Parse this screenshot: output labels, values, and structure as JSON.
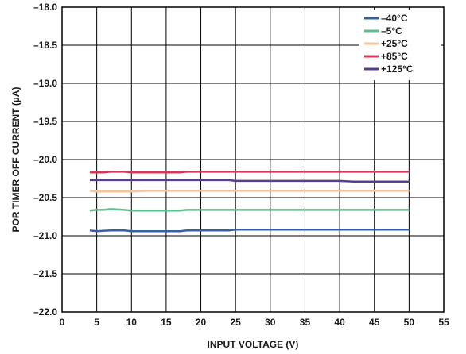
{
  "chart_data": {
    "type": "line",
    "title": "",
    "xlabel": "INPUT VOLTAGE (V)",
    "ylabel": "POR TIMER OFF CURRENT (µA)",
    "xlim": [
      0,
      55
    ],
    "ylim": [
      -22.0,
      -18.0
    ],
    "x_ticks": [
      "0",
      "5",
      "10",
      "15",
      "20",
      "25",
      "30",
      "35",
      "40",
      "45",
      "50",
      "55"
    ],
    "y_ticks": [
      "–18.0",
      "–18.5",
      "–19.0",
      "–19.5",
      "–20.0",
      "–20.5",
      "–21.0",
      "–21.5",
      "–22.0"
    ],
    "grid": true,
    "legend_position": "top-right",
    "series": [
      {
        "name": "–40°C",
        "color": "#3a5fa0",
        "points": [
          [
            4,
            -20.93
          ],
          [
            5,
            -20.94
          ],
          [
            7,
            -20.93
          ],
          [
            9,
            -20.93
          ],
          [
            10,
            -20.94
          ],
          [
            15,
            -20.94
          ],
          [
            17,
            -20.94
          ],
          [
            18,
            -20.93
          ],
          [
            24,
            -20.93
          ],
          [
            25,
            -20.92
          ],
          [
            30,
            -20.92
          ],
          [
            40,
            -20.92
          ],
          [
            50,
            -20.92
          ]
        ]
      },
      {
        "name": "–5°C",
        "color": "#5cbf8e",
        "points": [
          [
            4,
            -20.67
          ],
          [
            5,
            -20.66
          ],
          [
            6,
            -20.66
          ],
          [
            7,
            -20.65
          ],
          [
            9,
            -20.66
          ],
          [
            10,
            -20.67
          ],
          [
            17,
            -20.67
          ],
          [
            18,
            -20.66
          ],
          [
            25,
            -20.66
          ],
          [
            30,
            -20.66
          ],
          [
            40,
            -20.66
          ],
          [
            50,
            -20.66
          ]
        ]
      },
      {
        "name": "+25°C",
        "color": "#f5c59a",
        "points": [
          [
            4,
            -20.41
          ],
          [
            5,
            -20.42
          ],
          [
            10,
            -20.42
          ],
          [
            12,
            -20.41
          ],
          [
            20,
            -20.41
          ],
          [
            30,
            -20.41
          ],
          [
            40,
            -20.41
          ],
          [
            50,
            -20.41
          ]
        ]
      },
      {
        "name": "+85°C",
        "color": "#d6375a",
        "points": [
          [
            4,
            -20.17
          ],
          [
            6,
            -20.17
          ],
          [
            7,
            -20.16
          ],
          [
            9,
            -20.16
          ],
          [
            10,
            -20.17
          ],
          [
            17,
            -20.17
          ],
          [
            18,
            -20.16
          ],
          [
            25,
            -20.16
          ],
          [
            30,
            -20.16
          ],
          [
            40,
            -20.16
          ],
          [
            50,
            -20.16
          ]
        ]
      },
      {
        "name": "+125°C",
        "color": "#5a3d8f",
        "points": [
          [
            4,
            -20.27
          ],
          [
            10,
            -20.27
          ],
          [
            20,
            -20.27
          ],
          [
            24,
            -20.27
          ],
          [
            25,
            -20.28
          ],
          [
            30,
            -20.28
          ],
          [
            40,
            -20.28
          ],
          [
            42,
            -20.29
          ],
          [
            50,
            -20.29
          ]
        ]
      }
    ]
  }
}
